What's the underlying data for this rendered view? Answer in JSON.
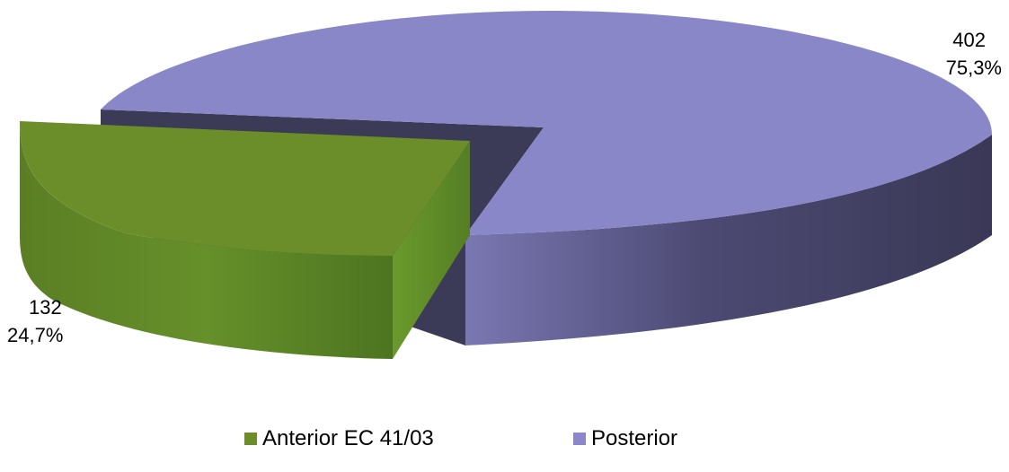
{
  "chart_data": {
    "type": "pie",
    "style": "3d-exploded",
    "slices": [
      {
        "name": "Anterior EC 41/03",
        "value": 132,
        "percent_label": "24,7%",
        "value_label": "132",
        "color": "#6B8E2A"
      },
      {
        "name": "Posterior",
        "value": 402,
        "percent_label": "75,3%",
        "value_label": "402",
        "color": "#8B87C9"
      }
    ],
    "legend_position": "bottom",
    "title": ""
  }
}
